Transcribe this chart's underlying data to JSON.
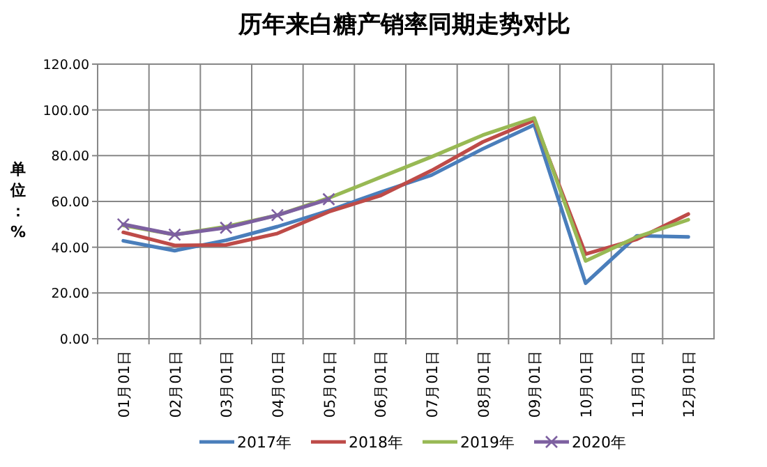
{
  "chart_data": {
    "type": "line",
    "title": "历年来白糖产销率同期走势对比",
    "ylabel": "单位：%",
    "categories": [
      "01月01日",
      "02月01日",
      "03月01日",
      "04月01日",
      "05月01日",
      "06月01日",
      "07月01日",
      "08月01日",
      "09月01日",
      "10月01日",
      "11月01日",
      "12月01日"
    ],
    "series": [
      {
        "name": "2017年",
        "color": "#4a7ebb",
        "values": [
          42.8,
          38.5,
          43,
          49,
          56,
          64,
          71.5,
          83,
          93.5,
          24.3,
          45,
          44.5
        ]
      },
      {
        "name": "2018年",
        "color": "#be4b48",
        "values": [
          46.5,
          40.8,
          41,
          46,
          55.5,
          62.5,
          73.5,
          86,
          95.5,
          37,
          43.5,
          54.5
        ]
      },
      {
        "name": "2019年",
        "color": "#98b954",
        "values": [
          49.5,
          45.5,
          49,
          54,
          61.5,
          70.5,
          79.5,
          89,
          96.5,
          34,
          44.5,
          52
        ]
      },
      {
        "name": "2020年",
        "color": "#7d60a0",
        "marker": "cross",
        "values": [
          50,
          45.5,
          48.5,
          54,
          61,
          null,
          null,
          null,
          null,
          null,
          null,
          null
        ]
      }
    ],
    "ylim": [
      0,
      120
    ],
    "yticks": [
      {
        "value": 0,
        "label": "0.00"
      },
      {
        "value": 20,
        "label": "20.00"
      },
      {
        "value": 40,
        "label": "40.00"
      },
      {
        "value": 60,
        "label": "60.00"
      },
      {
        "value": 80,
        "label": "80.00"
      },
      {
        "value": 100,
        "label": "100.00"
      },
      {
        "value": 120,
        "label": "120.00"
      }
    ],
    "grid": true,
    "legend": "bottom",
    "marker": "none",
    "line_style": "solid"
  }
}
